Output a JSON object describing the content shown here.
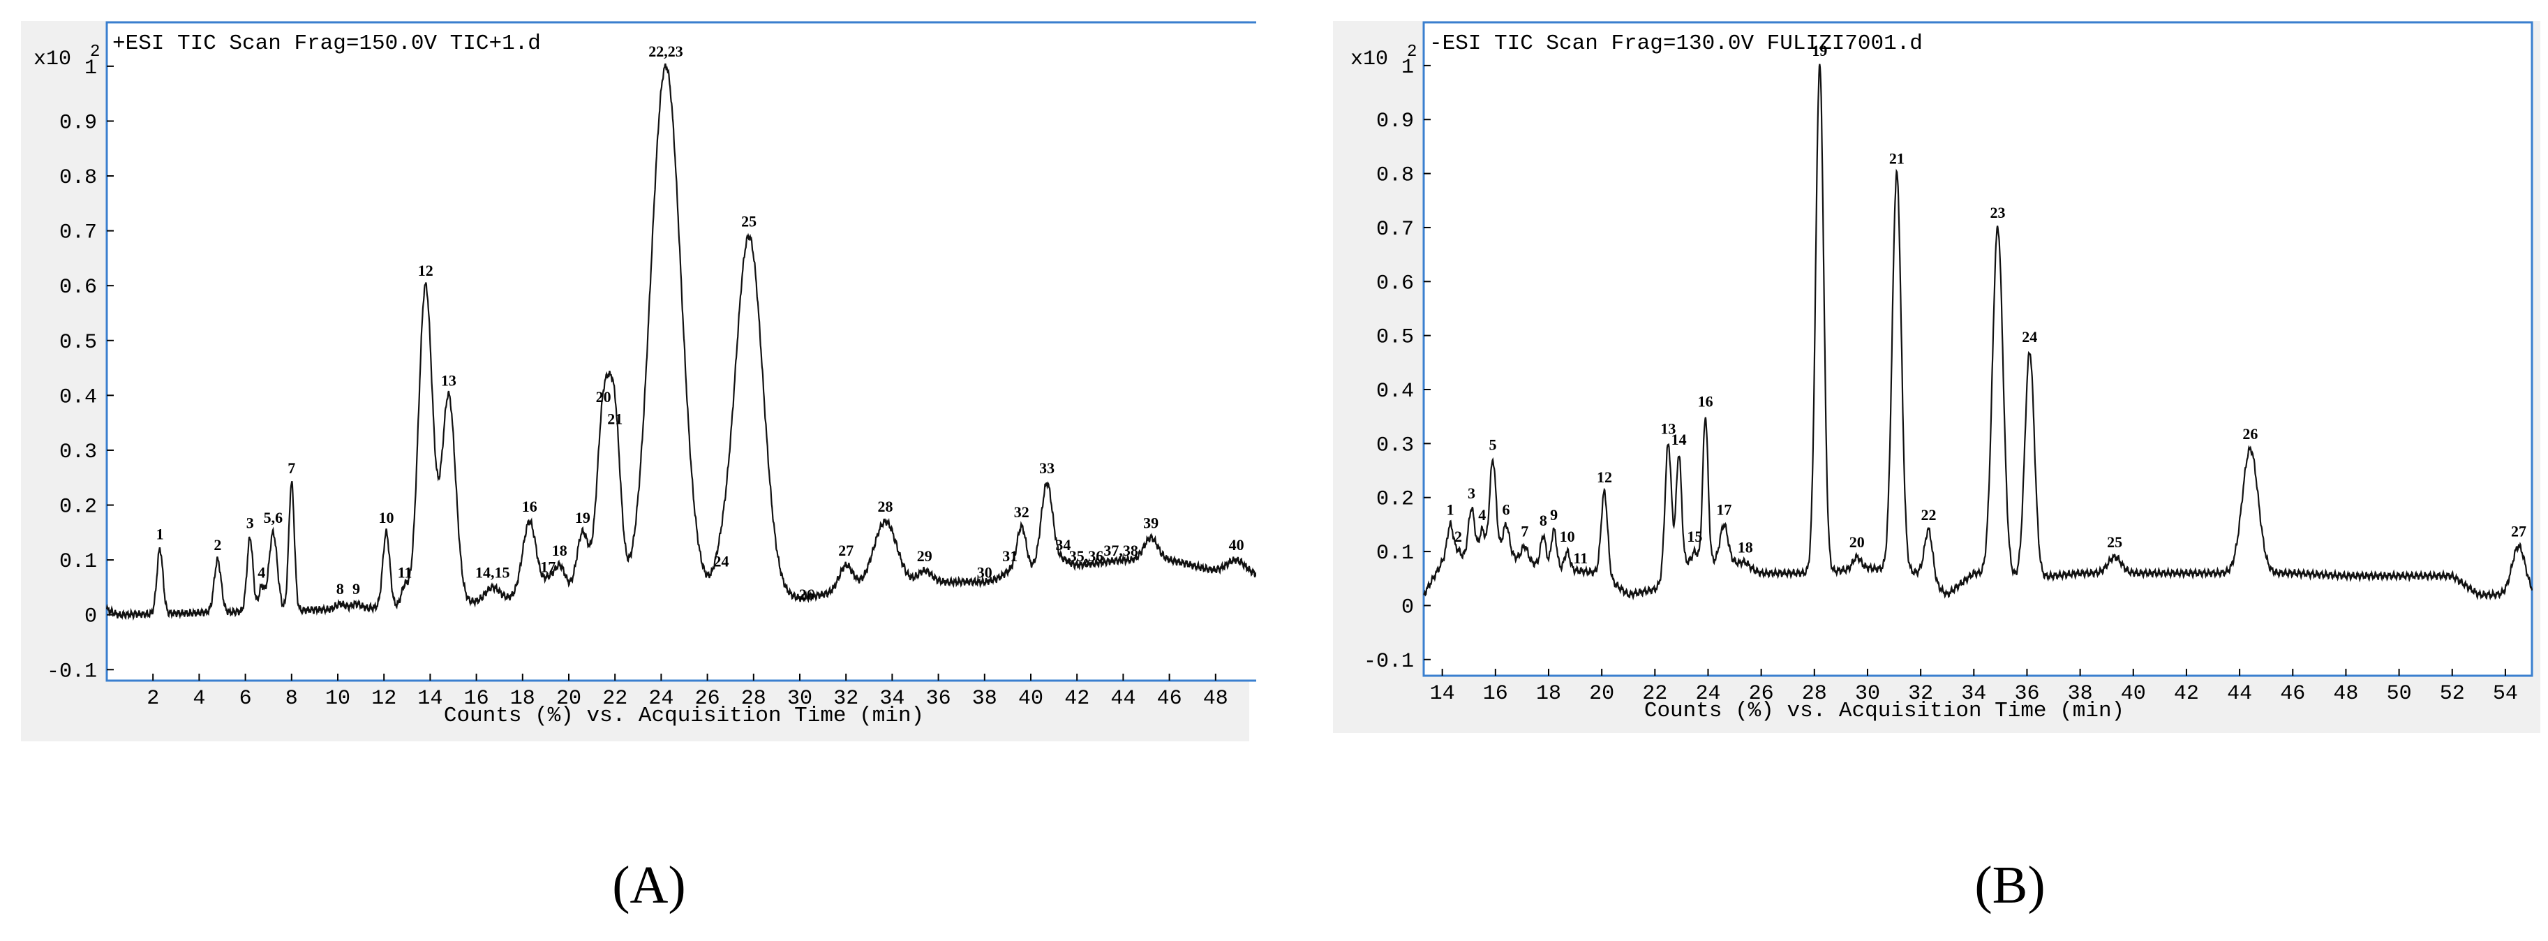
{
  "chart_data": [
    {
      "type": "line",
      "panel_label": "(A)",
      "title": "+ESI TIC Scan Frag=150.0V TIC+1.d",
      "scale_label": "x10",
      "scale_exp": "2",
      "xlabel": "Counts (%) vs. Acquisition Time (min)",
      "ylabel": "",
      "xlim": [
        0,
        50
      ],
      "ylim": [
        -0.12,
        1.08
      ],
      "xticks": [
        2,
        4,
        6,
        8,
        10,
        12,
        14,
        16,
        18,
        20,
        22,
        24,
        26,
        28,
        30,
        32,
        34,
        36,
        38,
        40,
        42,
        44,
        46,
        48
      ],
      "yticks": [
        -0.1,
        0,
        0.1,
        0.2,
        0.3,
        0.4,
        0.5,
        0.6,
        0.7,
        0.8,
        0.9,
        1
      ],
      "baseline": [
        [
          0,
          0.01
        ],
        [
          0.5,
          0
        ],
        [
          10,
          0.01
        ],
        [
          15,
          0.02
        ],
        [
          20,
          0.04
        ],
        [
          24,
          0.04
        ],
        [
          26,
          0.04
        ],
        [
          30,
          0.03
        ],
        [
          33,
          0.05
        ],
        [
          36,
          0.06
        ],
        [
          38,
          0.06
        ],
        [
          40,
          0.08
        ],
        [
          42,
          0.09
        ],
        [
          44,
          0.1
        ],
        [
          46,
          0.1
        ],
        [
          48,
          0.08
        ],
        [
          50,
          0.07
        ]
      ],
      "peaks": [
        {
          "label": "1",
          "x": 2.3,
          "y": 0.12,
          "w": 0.13
        },
        {
          "label": "2",
          "x": 4.8,
          "y": 0.1,
          "w": 0.15
        },
        {
          "label": "3",
          "x": 6.2,
          "y": 0.14,
          "w": 0.13
        },
        {
          "label": "4",
          "x": 6.7,
          "y": 0.05,
          "w": 0.12
        },
        {
          "label": "5,6",
          "x": 7.2,
          "y": 0.15,
          "w": 0.18
        },
        {
          "label": "7",
          "x": 8.0,
          "y": 0.24,
          "w": 0.12
        },
        {
          "label": "8",
          "x": 10.1,
          "y": 0.02,
          "w": 0.2
        },
        {
          "label": "9",
          "x": 10.8,
          "y": 0.02,
          "w": 0.2
        },
        {
          "label": "10",
          "x": 12.1,
          "y": 0.15,
          "w": 0.15
        },
        {
          "label": "11",
          "x": 12.9,
          "y": 0.05,
          "w": 0.15
        },
        {
          "label": "12",
          "x": 13.8,
          "y": 0.6,
          "w": 0.3
        },
        {
          "label": "13",
          "x": 14.8,
          "y": 0.4,
          "w": 0.3
        },
        {
          "label": "14,15",
          "x": 16.7,
          "y": 0.05,
          "w": 0.3
        },
        {
          "label": "16",
          "x": 18.3,
          "y": 0.17,
          "w": 0.3
        },
        {
          "label": "17",
          "x": 19.1,
          "y": 0.06,
          "w": 0.2
        },
        {
          "label": "18",
          "x": 19.6,
          "y": 0.09,
          "w": 0.25
        },
        {
          "label": "19",
          "x": 20.6,
          "y": 0.15,
          "w": 0.25
        },
        {
          "label": "20",
          "x": 21.5,
          "y": 0.37,
          "w": 0.28
        },
        {
          "label": "21",
          "x": 22.0,
          "y": 0.33,
          "w": 0.25
        },
        {
          "label": "22,23",
          "x": 24.2,
          "y": 1.0,
          "w": 0.65
        },
        {
          "label": "24",
          "x": 26.6,
          "y": 0.07,
          "w": 0.3
        },
        {
          "label": "25",
          "x": 27.8,
          "y": 0.69,
          "w": 0.6
        },
        {
          "label": "26",
          "x": 30.3,
          "y": 0.01,
          "w": 0.3
        },
        {
          "label": "27",
          "x": 32.0,
          "y": 0.09,
          "w": 0.3
        },
        {
          "label": "28",
          "x": 33.7,
          "y": 0.17,
          "w": 0.5
        },
        {
          "label": "29",
          "x": 35.4,
          "y": 0.08,
          "w": 0.3
        },
        {
          "label": "30",
          "x": 38.0,
          "y": 0.05,
          "w": 0.3
        },
        {
          "label": "31",
          "x": 39.1,
          "y": 0.08,
          "w": 0.25
        },
        {
          "label": "32",
          "x": 39.6,
          "y": 0.16,
          "w": 0.2
        },
        {
          "label": "33",
          "x": 40.7,
          "y": 0.24,
          "w": 0.25
        },
        {
          "label": "34",
          "x": 41.4,
          "y": 0.1,
          "w": 0.25
        },
        {
          "label": "35,36",
          "x": 42.4,
          "y": 0.08,
          "w": 0.3
        },
        {
          "label": "37,38",
          "x": 43.9,
          "y": 0.09,
          "w": 0.3
        },
        {
          "label": "39",
          "x": 45.2,
          "y": 0.14,
          "w": 0.3
        },
        {
          "label": "40",
          "x": 48.9,
          "y": 0.1,
          "w": 0.4
        }
      ]
    },
    {
      "type": "line",
      "panel_label": "(B)",
      "title": "-ESI TIC Scan Frag=130.0V FULIZI7001.d",
      "scale_label": "x10",
      "scale_exp": "2",
      "xlabel": "Counts (%) vs. Acquisition Time (min)",
      "ylabel": "",
      "xlim": [
        13.3,
        55
      ],
      "ylim": [
        -0.13,
        1.08
      ],
      "xticks": [
        14,
        16,
        18,
        20,
        22,
        24,
        26,
        28,
        30,
        32,
        34,
        36,
        38,
        40,
        42,
        44,
        46,
        48,
        50,
        52,
        54
      ],
      "yticks": [
        -0.1,
        0,
        0.1,
        0.2,
        0.3,
        0.4,
        0.5,
        0.6,
        0.7,
        0.8,
        0.9,
        1
      ],
      "baseline": [
        [
          13.3,
          0.02
        ],
        [
          14,
          0.08
        ],
        [
          16,
          0.1
        ],
        [
          18,
          0.07
        ],
        [
          20,
          0.06
        ],
        [
          21,
          0.02
        ],
        [
          22,
          0.03
        ],
        [
          23,
          0.08
        ],
        [
          25,
          0.08
        ],
        [
          26,
          0.06
        ],
        [
          28,
          0.06
        ],
        [
          30,
          0.07
        ],
        [
          32,
          0.06
        ],
        [
          33,
          0.02
        ],
        [
          34,
          0.06
        ],
        [
          36,
          0.05
        ],
        [
          38,
          0.06
        ],
        [
          40,
          0.06
        ],
        [
          42,
          0.06
        ],
        [
          44,
          0.06
        ],
        [
          46,
          0.06
        ],
        [
          48,
          0.055
        ],
        [
          50,
          0.055
        ],
        [
          52,
          0.055
        ],
        [
          53,
          0.02
        ],
        [
          54,
          0.02
        ],
        [
          55,
          0.02
        ]
      ],
      "peaks": [
        {
          "label": "1",
          "x": 14.3,
          "y": 0.15,
          "w": 0.12
        },
        {
          "label": "2",
          "x": 14.6,
          "y": 0.1,
          "w": 0.1
        },
        {
          "label": "3",
          "x": 15.1,
          "y": 0.18,
          "w": 0.12
        },
        {
          "label": "4",
          "x": 15.5,
          "y": 0.14,
          "w": 0.1
        },
        {
          "label": "5",
          "x": 15.9,
          "y": 0.27,
          "w": 0.12
        },
        {
          "label": "6",
          "x": 16.4,
          "y": 0.15,
          "w": 0.12
        },
        {
          "label": "7",
          "x": 17.1,
          "y": 0.11,
          "w": 0.12
        },
        {
          "label": "8",
          "x": 17.8,
          "y": 0.13,
          "w": 0.1
        },
        {
          "label": "9",
          "x": 18.2,
          "y": 0.14,
          "w": 0.1
        },
        {
          "label": "10",
          "x": 18.7,
          "y": 0.1,
          "w": 0.1
        },
        {
          "label": "11",
          "x": 19.2,
          "y": 0.06,
          "w": 0.1
        },
        {
          "label": "12",
          "x": 20.1,
          "y": 0.21,
          "w": 0.12
        },
        {
          "label": "13",
          "x": 22.5,
          "y": 0.3,
          "w": 0.12
        },
        {
          "label": "14",
          "x": 22.9,
          "y": 0.28,
          "w": 0.1
        },
        {
          "label": "15",
          "x": 23.5,
          "y": 0.1,
          "w": 0.1
        },
        {
          "label": "16",
          "x": 23.9,
          "y": 0.35,
          "w": 0.1
        },
        {
          "label": "17",
          "x": 24.6,
          "y": 0.15,
          "w": 0.15
        },
        {
          "label": "18",
          "x": 25.4,
          "y": 0.08,
          "w": 0.15
        },
        {
          "label": "19",
          "x": 28.2,
          "y": 1.0,
          "w": 0.15
        },
        {
          "label": "20",
          "x": 29.6,
          "y": 0.09,
          "w": 0.15
        },
        {
          "label": "21",
          "x": 31.1,
          "y": 0.8,
          "w": 0.17
        },
        {
          "label": "22",
          "x": 32.3,
          "y": 0.14,
          "w": 0.15
        },
        {
          "label": "23",
          "x": 34.9,
          "y": 0.7,
          "w": 0.2
        },
        {
          "label": "24",
          "x": 36.1,
          "y": 0.47,
          "w": 0.18
        },
        {
          "label": "25",
          "x": 39.3,
          "y": 0.09,
          "w": 0.25
        },
        {
          "label": "26",
          "x": 44.4,
          "y": 0.29,
          "w": 0.3
        },
        {
          "label": "27",
          "x": 54.5,
          "y": 0.11,
          "w": 0.25
        }
      ]
    }
  ]
}
